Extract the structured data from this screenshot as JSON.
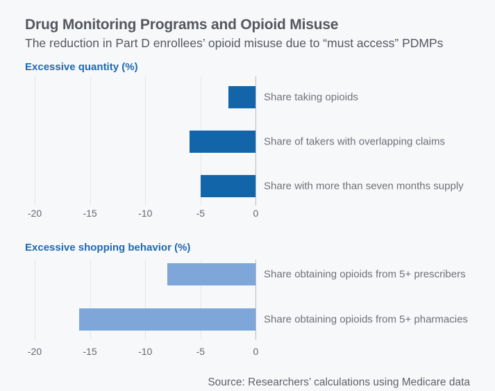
{
  "page": {
    "title": "Drug Monitoring Programs and Opioid Misuse",
    "subtitle": "The reduction in Part D enrollees’ opioid misuse due to “must access” PDMPs",
    "source": "Source: Researchers’ calculations using Medicare data"
  },
  "colors": {
    "background": "#f7f8fa",
    "title_text": "#54575f",
    "section_label": "#1e68b2",
    "bar_dark": "#1365a9",
    "bar_light": "#7ea6d9",
    "category_label": "#6d7078",
    "tick_label": "#64676e",
    "source_text": "#5e6169",
    "gridline": "#e3e5e9",
    "zero_axis": "#b7bac0"
  },
  "chart_data": [
    {
      "type": "bar",
      "orientation": "horizontal",
      "section_label": "Excessive quantity (%)",
      "categories": [
        "Share taking opioids",
        "Share of takers with overlapping claims",
        "Share with more than seven months supply"
      ],
      "values": [
        -2.5,
        -6,
        -5
      ],
      "bar_color": "#1365a9",
      "xlim": [
        -20,
        0
      ],
      "xticks": [
        -20,
        -15,
        -10,
        -5,
        0
      ],
      "grid": true,
      "category_label_position": "right of zero axis"
    },
    {
      "type": "bar",
      "orientation": "horizontal",
      "section_label": "Excessive shopping behavior (%)",
      "categories": [
        "Share obtaining opioids from 5+ prescribers",
        "Share obtaining opioids from 5+ pharmacies"
      ],
      "values": [
        -8,
        -16
      ],
      "bar_color": "#7ea6d9",
      "xlim": [
        -20,
        0
      ],
      "xticks": [
        -20,
        -15,
        -10,
        -5,
        0
      ],
      "grid": true,
      "category_label_position": "right of zero axis"
    }
  ]
}
